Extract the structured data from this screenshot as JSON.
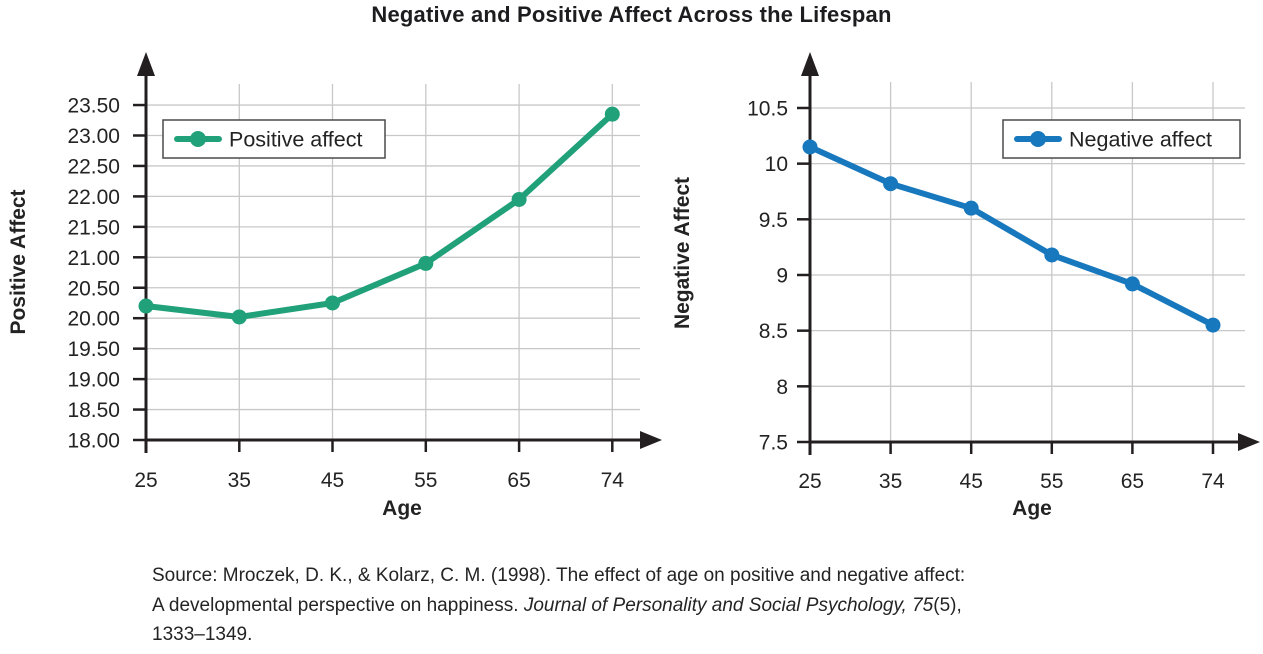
{
  "title": "Negative and Positive Affect Across the Lifespan",
  "chart_data": [
    {
      "type": "line",
      "name": "positive-affect-chart",
      "legend": "Positive affect",
      "color": "#21a179",
      "ylabel": "Positive Affect",
      "xlabel": "Age",
      "categories": [
        "25",
        "35",
        "45",
        "55",
        "65",
        "74"
      ],
      "values": [
        20.2,
        20.02,
        20.25,
        20.9,
        21.95,
        23.35
      ],
      "ymin": 18.0,
      "ymax": 23.5,
      "ystep": 0.5,
      "ydecimals": 2,
      "trim_zeros": false,
      "grid": true,
      "legend_pos": "top-left"
    },
    {
      "type": "line",
      "name": "negative-affect-chart",
      "legend": "Negative affect",
      "color": "#1878be",
      "ylabel": "Negative Affect",
      "xlabel": "Age",
      "categories": [
        "25",
        "35",
        "45",
        "55",
        "65",
        "74"
      ],
      "values": [
        10.15,
        9.82,
        9.6,
        9.18,
        8.92,
        8.55
      ],
      "ymin": 7.5,
      "ymax": 10.5,
      "ystep": 0.5,
      "ydecimals": 1,
      "trim_zeros": true,
      "grid": true,
      "legend_pos": "top-right"
    }
  ],
  "source": {
    "line1": "Source: Mroczek, D. K., & Kolarz, C. M. (1998). The effect of age on positive and negative affect:",
    "line2_pre": "A developmental perspective on happiness. ",
    "line2_italic": "Journal of Personality and Social Psychology, 75",
    "line2_post": "(5),",
    "line3": "1333–1349."
  },
  "colors": {
    "positive_line": "#21a179",
    "negative_line": "#1878be",
    "gridline": "#c8c8c8",
    "axis": "#231f20",
    "text": "#232323"
  }
}
